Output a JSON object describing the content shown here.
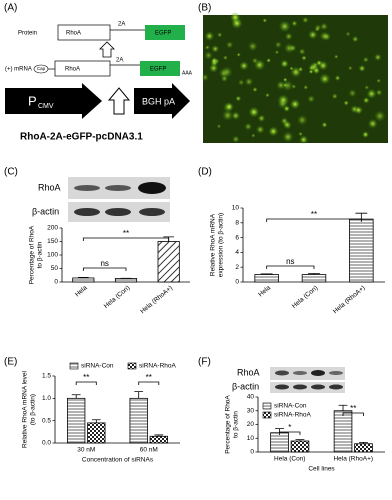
{
  "diagram": {
    "panel_label": "(A)",
    "protein_label": "Protein",
    "protein_rhoa": "RhoA",
    "protein_2a": "2A",
    "protein_egfp": "EGFP",
    "mrna_label": "(+) mRNA",
    "cap": "Cap",
    "mrna_rhoa": "RhoA",
    "mrna_2a": "2A",
    "mrna_egfp": "EGFP",
    "polya": "AAA",
    "promoter": "P",
    "promoter_sub": "CMV",
    "terminator": "BGH pA",
    "construct": "RhoA-2A-eGFP-pcDNA3.1"
  },
  "image_panel": {
    "panel_label": "(B)"
  },
  "chart_data": [
    {
      "type": "bar",
      "panel_label": "(C)",
      "blot_labels": [
        "RhoA",
        "β-actin"
      ],
      "ylabel": [
        "Percentage of RhoA",
        "to β-actin"
      ],
      "categories": [
        "Hela",
        "Hela (Con)",
        "Hela (RhoA+)"
      ],
      "values": [
        15,
        13,
        150
      ],
      "errors": [
        2,
        1,
        17
      ],
      "patterns": [
        "hlines",
        "hlines",
        "diag"
      ],
      "color": "#000000",
      "ylim": [
        0,
        200
      ],
      "yticks": [
        0,
        50,
        100,
        150,
        200
      ],
      "annotations": [
        "**",
        "ns"
      ]
    },
    {
      "type": "bar",
      "panel_label": "(D)",
      "ylabel": [
        "Relative RhoA mRNA",
        "expression (to β-actin)"
      ],
      "categories": [
        "Hela",
        "Hela (Con)",
        "Hela (RhoA+)"
      ],
      "values": [
        1,
        1,
        8.5
      ],
      "errors": [
        0.1,
        0.15,
        0.8
      ],
      "patterns": [
        "hlines",
        "hlines",
        "hlines"
      ],
      "color": "#000000",
      "ylim": [
        0,
        10
      ],
      "yticks": [
        0,
        2,
        4,
        6,
        8,
        10
      ],
      "annotations": [
        "**",
        "ns"
      ]
    },
    {
      "type": "grouped-bar",
      "panel_label": "(E)",
      "ylabel": [
        "Relative RhoA mRNA level",
        "(to β-actin)"
      ],
      "xlabel": "Concentration of siRNAs",
      "categories": [
        "30 nM",
        "60 nM"
      ],
      "series": [
        {
          "name": "siRNA-Con",
          "pattern": "hlines",
          "color": "#000000",
          "values": [
            1.0,
            1.0
          ],
          "errors": [
            0.08,
            0.15
          ]
        },
        {
          "name": "siRNA-RhoA",
          "pattern": "check",
          "color": "#000000",
          "values": [
            0.45,
            0.15
          ],
          "errors": [
            0.07,
            0.03
          ]
        }
      ],
      "ylim": [
        0,
        1.5
      ],
      "yticks": [
        {
          "value": 0,
          "label": "0.0"
        },
        0.5,
        {
          "value": 1,
          "label": "1.0"
        },
        1.5
      ],
      "annotations": [
        "**",
        "**"
      ],
      "legend": "top"
    },
    {
      "type": "grouped-bar",
      "panel_label": "(F)",
      "blot_labels": [
        "RhoA",
        "β-actin"
      ],
      "ylabel": [
        "Percentage of RhoA",
        "to β-actin"
      ],
      "xlabel": "Cell lines",
      "categories": [
        "Hela (Con)",
        "Hela (RhoA+)"
      ],
      "series": [
        {
          "name": "siRNA-Con",
          "pattern": "hlines",
          "color": "#000000",
          "values": [
            14,
            30
          ],
          "errors": [
            3,
            4
          ]
        },
        {
          "name": "siRNA-RhoA",
          "pattern": "check",
          "color": "#000000",
          "values": [
            8,
            6
          ],
          "errors": [
            1,
            1
          ]
        }
      ],
      "ylim": [
        0,
        40
      ],
      "yticks": [
        0,
        10,
        20,
        30,
        40
      ],
      "annotations": [
        "*",
        "**"
      ],
      "legend": "top-left"
    }
  ]
}
